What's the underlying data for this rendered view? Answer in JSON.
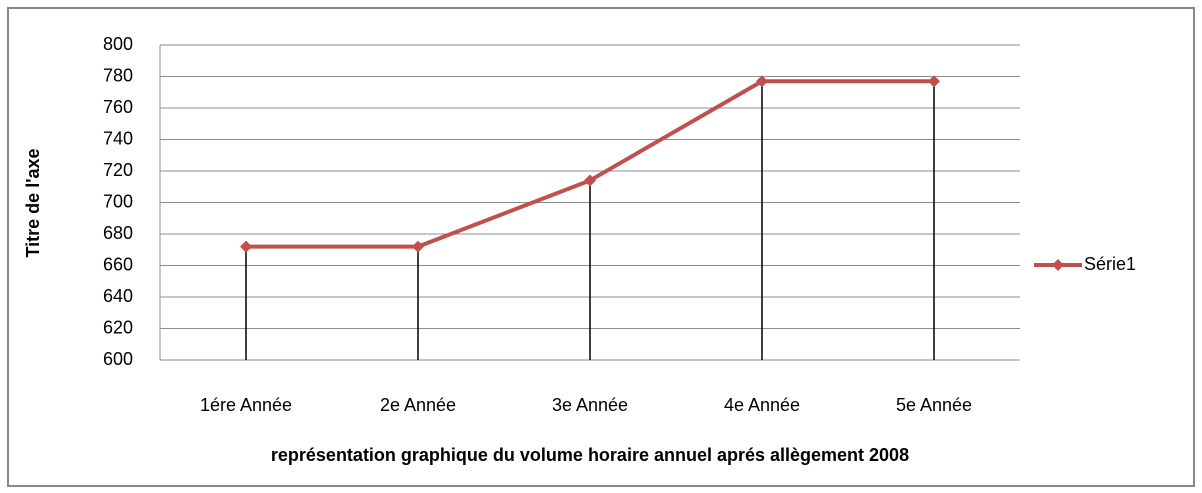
{
  "chart_data": {
    "type": "line",
    "x_label": "représentation graphique du volume horaire annuel aprés allègement 2008",
    "y_label": "Titre de l'axe",
    "categories": [
      "1ére Année",
      "2e Année",
      "3e Année",
      "4e Année",
      "5e Année"
    ],
    "series": [
      {
        "name": "Série1",
        "color": "#c0504d",
        "values": [
          672,
          672,
          714,
          777,
          777
        ]
      }
    ],
    "ylim": [
      600,
      800
    ],
    "yticks": [
      600,
      620,
      640,
      660,
      680,
      700,
      720,
      740,
      760,
      780,
      800
    ],
    "grid": true,
    "drop_lines": true,
    "legend": "right"
  }
}
